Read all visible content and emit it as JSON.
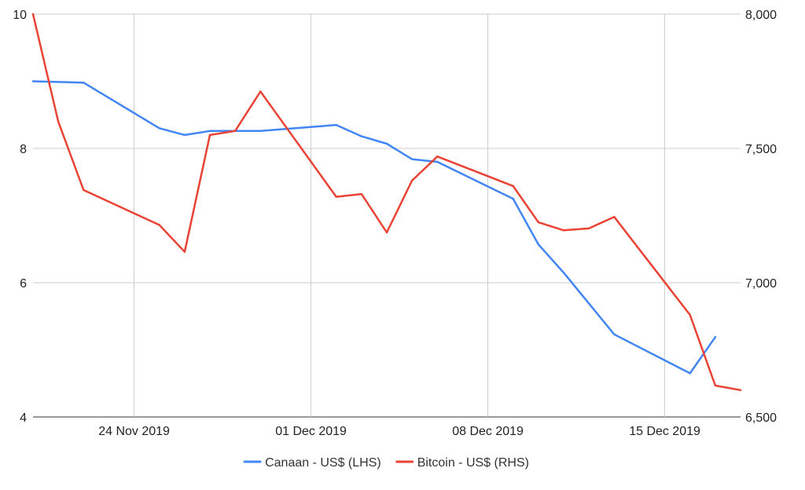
{
  "chart_data": {
    "type": "line",
    "x_axis": {
      "type": "date",
      "range": [
        "2019-11-20",
        "2019-12-18"
      ],
      "ticks": [
        {
          "date": "2019-11-24",
          "label": "24 Nov 2019"
        },
        {
          "date": "2019-12-01",
          "label": "01 Dec 2019"
        },
        {
          "date": "2019-12-08",
          "label": "08 Dec 2019"
        },
        {
          "date": "2019-12-15",
          "label": "15 Dec 2019"
        }
      ],
      "grid": true
    },
    "y_left": {
      "ylim": [
        4,
        10
      ],
      "ticks": [
        {
          "value": 4,
          "label": "4"
        },
        {
          "value": 6,
          "label": "6"
        },
        {
          "value": 8,
          "label": "8"
        },
        {
          "value": 10,
          "label": "10"
        }
      ],
      "grid": true
    },
    "y_right": {
      "ylim": [
        6500,
        8000
      ],
      "ticks": [
        {
          "value": 6500,
          "label": "6,500"
        },
        {
          "value": 7000,
          "label": "7,000"
        },
        {
          "value": 7500,
          "label": "7,500"
        },
        {
          "value": 8000,
          "label": "8,000"
        }
      ]
    },
    "legend_position": "bottom",
    "series": [
      {
        "name": "Canaan - US$ (LHS)",
        "axis": "left",
        "color": "#4285f4",
        "points": [
          {
            "x": "2019-11-20",
            "y": 9.0
          },
          {
            "x": "2019-11-22",
            "y": 8.98
          },
          {
            "x": "2019-11-25",
            "y": 8.3
          },
          {
            "x": "2019-11-26",
            "y": 8.2
          },
          {
            "x": "2019-11-27",
            "y": 8.26
          },
          {
            "x": "2019-11-29",
            "y": 8.26
          },
          {
            "x": "2019-12-02",
            "y": 8.35
          },
          {
            "x": "2019-12-03",
            "y": 8.18
          },
          {
            "x": "2019-12-04",
            "y": 8.07
          },
          {
            "x": "2019-12-05",
            "y": 7.84
          },
          {
            "x": "2019-12-06",
            "y": 7.8
          },
          {
            "x": "2019-12-09",
            "y": 7.25
          },
          {
            "x": "2019-12-10",
            "y": 6.57
          },
          {
            "x": "2019-12-11",
            "y": 6.15
          },
          {
            "x": "2019-12-13",
            "y": 5.23
          },
          {
            "x": "2019-12-16",
            "y": 4.65
          },
          {
            "x": "2019-12-17",
            "y": 5.19
          }
        ]
      },
      {
        "name": "Bitcoin - US$ (RHS)",
        "axis": "right",
        "color": "#ea4335",
        "points": [
          {
            "x": "2019-11-20",
            "y": 8000
          },
          {
            "x": "2019-11-21",
            "y": 7600
          },
          {
            "x": "2019-11-22",
            "y": 7345
          },
          {
            "x": "2019-11-25",
            "y": 7215
          },
          {
            "x": "2019-11-26",
            "y": 7115
          },
          {
            "x": "2019-11-27",
            "y": 7550
          },
          {
            "x": "2019-11-28",
            "y": 7565
          },
          {
            "x": "2019-11-29",
            "y": 7712
          },
          {
            "x": "2019-12-02",
            "y": 7320
          },
          {
            "x": "2019-12-03",
            "y": 7330
          },
          {
            "x": "2019-12-04",
            "y": 7187
          },
          {
            "x": "2019-12-05",
            "y": 7380
          },
          {
            "x": "2019-12-06",
            "y": 7470
          },
          {
            "x": "2019-12-09",
            "y": 7360
          },
          {
            "x": "2019-12-10",
            "y": 7225
          },
          {
            "x": "2019-12-11",
            "y": 7195
          },
          {
            "x": "2019-12-12",
            "y": 7202
          },
          {
            "x": "2019-12-13",
            "y": 7245
          },
          {
            "x": "2019-12-16",
            "y": 6880
          },
          {
            "x": "2019-12-17",
            "y": 6617
          },
          {
            "x": "2019-12-18",
            "y": 6600
          }
        ]
      }
    ]
  }
}
